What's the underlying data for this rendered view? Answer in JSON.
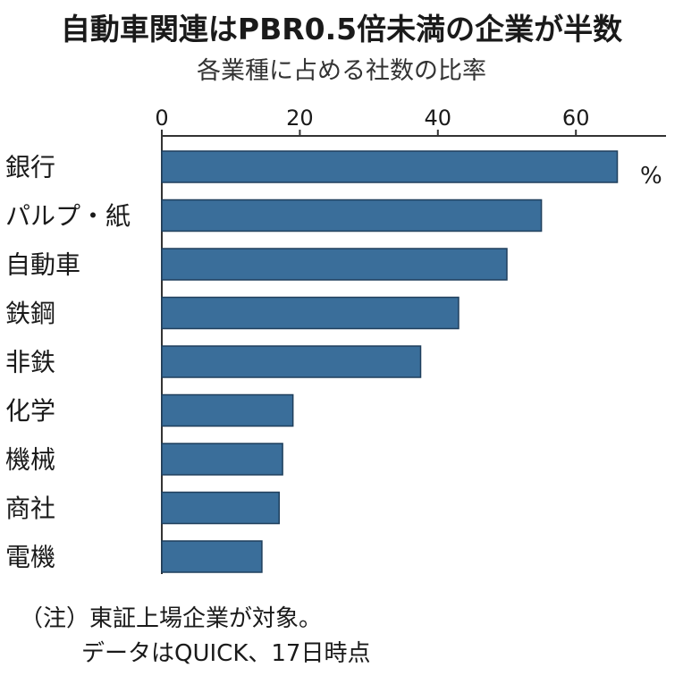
{
  "chart_data": {
    "type": "bar",
    "orientation": "horizontal",
    "title": "自動車関連はPBR0.5倍未満の企業が半数",
    "subtitle": "各業種に占める社数の比率",
    "unit": "%",
    "categories": [
      "銀行",
      "パルプ・紙",
      "自動車",
      "鉄鋼",
      "非鉄",
      "化学",
      "機械",
      "商社",
      "電機"
    ],
    "values": [
      66,
      55,
      50,
      43,
      37.5,
      19,
      17.5,
      17,
      14.5
    ],
    "xticks": [
      0,
      20,
      40,
      60
    ],
    "xlim": [
      0,
      73
    ],
    "grid": false,
    "bar_color": "#3a6e9a",
    "note_lines": [
      "（注）東証上場企業が対象。",
      "データはQUICK、17日時点"
    ]
  }
}
